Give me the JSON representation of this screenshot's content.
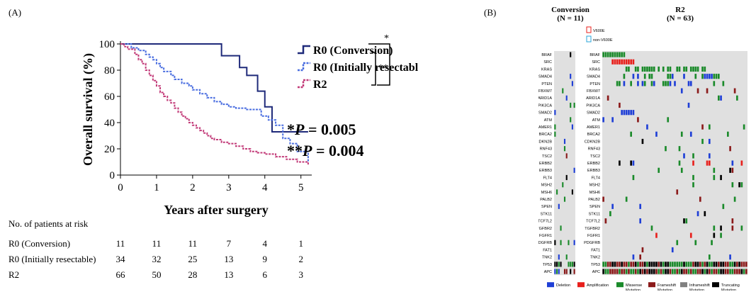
{
  "panel_a": {
    "label": "(A)",
    "risk_table": {
      "title": "No. of patients at risk",
      "rows": [
        {
          "label": "R0 (Conversion)",
          "values": [
            "11",
            "11",
            "11",
            "7",
            "4",
            "1"
          ]
        },
        {
          "label": "R0 (Initially resectable)",
          "values": [
            "34",
            "32",
            "25",
            "13",
            "9",
            "2"
          ]
        },
        {
          "label": "R2",
          "values": [
            "66",
            "50",
            "28",
            "13",
            "6",
            "3"
          ]
        }
      ]
    },
    "pvalues": {
      "p1_prefix": "*",
      "p1_var": "P",
      "p1_rest": " = 0.005",
      "p2_prefix": "**",
      "p2_var": "P",
      "p2_rest": " = 0.004"
    },
    "brackets": {
      "single": "*",
      "double": "**"
    }
  },
  "panel_b": {
    "label": "(B)",
    "conversion_title": "Conversion",
    "conversion_n": "(N = 11)",
    "r2_title": "R2",
    "r2_n": "(N = 63)",
    "braf_legend": [
      "V600E",
      "non-V600E"
    ],
    "genes": [
      "BRAF",
      "SRC",
      "KRAS",
      "SMAD4",
      "PTEN",
      "FBXW7",
      "ARID1A",
      "PIK3CA",
      "SMAD2",
      "ATM",
      "AMER1",
      "BRCA2",
      "CDKN2B",
      "RNF43",
      "TSC2",
      "ERBB2",
      "ERBB3",
      "FLT4",
      "MSH2",
      "MSH6",
      "PALB2",
      "SPEN",
      "STK11",
      "TCF7L2",
      "TGFBR2",
      "FGFR1",
      "PDGFRB",
      "FAT1",
      "TNK2",
      "TP53",
      "APC"
    ],
    "alteration_legend": [
      {
        "label": "Deletion",
        "color": "#1f3fd6"
      },
      {
        "label": "Amplification",
        "color": "#e8201c"
      },
      {
        "label": "Missense\nMutation",
        "color": "#1a8a2a"
      },
      {
        "label": "Frameshift\nMutation",
        "color": "#8b1a1a"
      },
      {
        "label": "Inframeshift\nMutation",
        "color": "#808080"
      },
      {
        "label": "Truncating\nMutation",
        "color": "#000000"
      }
    ],
    "colors": {
      "background": "#e0e0e0"
    }
  },
  "chart_data": {
    "type": "line",
    "title": "",
    "xlabel": "Years after surgery",
    "ylabel": "Overall survival (%)",
    "xlim": [
      0,
      5.3
    ],
    "ylim": [
      0,
      100
    ],
    "xticks": [
      "0",
      "1",
      "2",
      "3",
      "4",
      "5"
    ],
    "yticks": [
      "0",
      "20",
      "40",
      "60",
      "80",
      "100"
    ],
    "series": [
      {
        "name": "R0 (Conversion)",
        "color": "#1f2a7a",
        "style": "solid",
        "x": [
          0,
          2.8,
          2.8,
          3.3,
          3.3,
          3.5,
          3.5,
          3.8,
          3.8,
          4.0,
          4.0,
          4.2,
          4.2,
          5.2
        ],
        "y": [
          100,
          100,
          91,
          91,
          82,
          82,
          76,
          76,
          64,
          64,
          52,
          52,
          33,
          33
        ]
      },
      {
        "name": "R0 (Initially resectable)",
        "color": "#4a6ee0",
        "style": "dotted",
        "x": [
          0,
          0.2,
          0.3,
          0.5,
          0.7,
          0.8,
          0.9,
          1.0,
          1.1,
          1.2,
          1.4,
          1.5,
          1.7,
          1.9,
          2.0,
          2.2,
          2.4,
          2.6,
          2.8,
          3.0,
          3.2,
          3.5,
          3.7,
          3.9,
          4.1,
          4.3,
          4.5,
          4.7,
          4.9,
          5.1,
          5.2
        ],
        "y": [
          100,
          100,
          97,
          95,
          92,
          90,
          88,
          85,
          82,
          79,
          76,
          73,
          70,
          68,
          65,
          62,
          59,
          56,
          54,
          52,
          51,
          50,
          50,
          45,
          42,
          38,
          28,
          24,
          18,
          18,
          10
        ]
      },
      {
        "name": "R2",
        "color": "#c23a78",
        "style": "dotted",
        "x": [
          0,
          0.1,
          0.2,
          0.4,
          0.5,
          0.6,
          0.7,
          0.8,
          0.9,
          1.0,
          1.1,
          1.2,
          1.3,
          1.4,
          1.5,
          1.6,
          1.7,
          1.8,
          1.9,
          2.0,
          2.1,
          2.2,
          2.3,
          2.4,
          2.5,
          2.6,
          2.8,
          3.0,
          3.2,
          3.4,
          3.6,
          3.8,
          4.0,
          4.3,
          4.6,
          4.9,
          5.2
        ],
        "y": [
          100,
          98,
          96,
          92,
          88,
          85,
          80,
          76,
          72,
          68,
          63,
          60,
          57,
          55,
          51,
          48,
          45,
          43,
          40,
          38,
          36,
          34,
          32,
          30,
          28,
          27,
          25,
          24,
          22,
          20,
          18,
          17,
          16,
          14,
          12,
          10,
          8
        ]
      }
    ],
    "legend": "top-right",
    "grid": false
  }
}
